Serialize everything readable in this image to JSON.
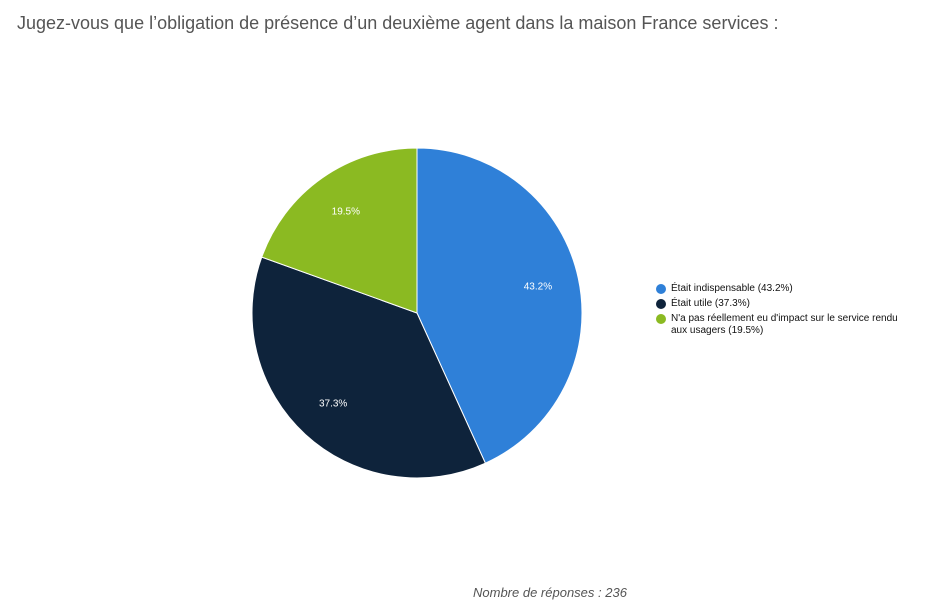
{
  "title": "Jugez-vous que l’obligation de présence d’un deuxième agent dans la maison France services :",
  "footer": "Nombre de réponses : 236",
  "chart_data": {
    "type": "pie",
    "title": "Jugez-vous que l’obligation de présence d’un deuxième agent dans la maison France services :",
    "slices": [
      {
        "label": "Était indispensable",
        "legend": "Était indispensable (43.2%)",
        "value": 43.2,
        "display": "43.2%",
        "color": "#2F80D8"
      },
      {
        "label": "Était utile",
        "legend": "Était utile (37.3%)",
        "value": 37.3,
        "display": "37.3%",
        "color": "#0E233B"
      },
      {
        "label": "N'a pas réellement eu d'impact sur le service rendu aux usagers",
        "legend": "N'a pas réellement eu d'impact sur le service rendu aux usagers (19.5%)",
        "value": 19.5,
        "display": "19.5%",
        "color": "#8BBA22"
      }
    ],
    "legend_position": "right",
    "responses": 236
  }
}
